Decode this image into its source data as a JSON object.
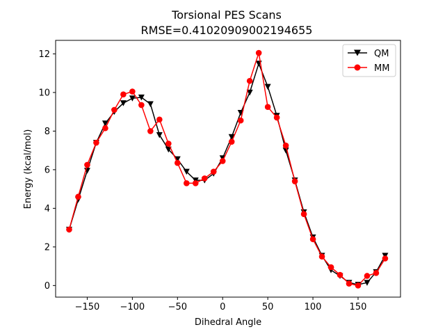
{
  "chart_data": {
    "type": "line",
    "title": "Torsional PES Scans",
    "subtitle": "RMSE=0.41020909002194655",
    "xlabel": "Dihedral Angle",
    "ylabel": "Energy (kcal/mol)",
    "xlim": [
      -185,
      197
    ],
    "ylim": [
      -0.6,
      12.7
    ],
    "xticks": [
      -150,
      -100,
      -50,
      0,
      50,
      100,
      150
    ],
    "yticks": [
      0,
      2,
      4,
      6,
      8,
      10,
      12
    ],
    "grid": false,
    "legend_position": "top-right",
    "x": [
      -170,
      -160,
      -150,
      -140,
      -130,
      -120,
      -110,
      -100,
      -90,
      -80,
      -70,
      -60,
      -50,
      -40,
      -30,
      -20,
      -10,
      0,
      10,
      20,
      30,
      40,
      50,
      60,
      70,
      80,
      90,
      100,
      110,
      120,
      130,
      140,
      150,
      160,
      170,
      180
    ],
    "series": [
      {
        "name": "QM",
        "color": "#000000",
        "marker": "triangle-down",
        "values": [
          2.9,
          4.45,
          5.95,
          7.4,
          8.4,
          9.0,
          9.45,
          9.7,
          9.75,
          9.4,
          7.8,
          7.05,
          6.55,
          5.9,
          5.45,
          5.45,
          5.8,
          6.6,
          7.7,
          8.95,
          10.0,
          11.5,
          10.3,
          8.8,
          7.0,
          5.45,
          3.8,
          2.5,
          1.55,
          0.8,
          0.5,
          0.15,
          0.05,
          0.15,
          0.7,
          1.55
        ]
      },
      {
        "name": "MM",
        "color": "#ff0000",
        "marker": "circle",
        "values": [
          2.9,
          4.6,
          6.25,
          7.4,
          8.15,
          9.1,
          9.9,
          10.05,
          9.35,
          8.0,
          8.6,
          7.35,
          6.35,
          5.3,
          5.3,
          5.55,
          5.9,
          6.45,
          7.45,
          8.55,
          10.6,
          12.05,
          9.25,
          8.7,
          7.25,
          5.4,
          3.7,
          2.4,
          1.5,
          0.95,
          0.55,
          0.1,
          0.0,
          0.5,
          0.65,
          1.4
        ]
      }
    ]
  }
}
